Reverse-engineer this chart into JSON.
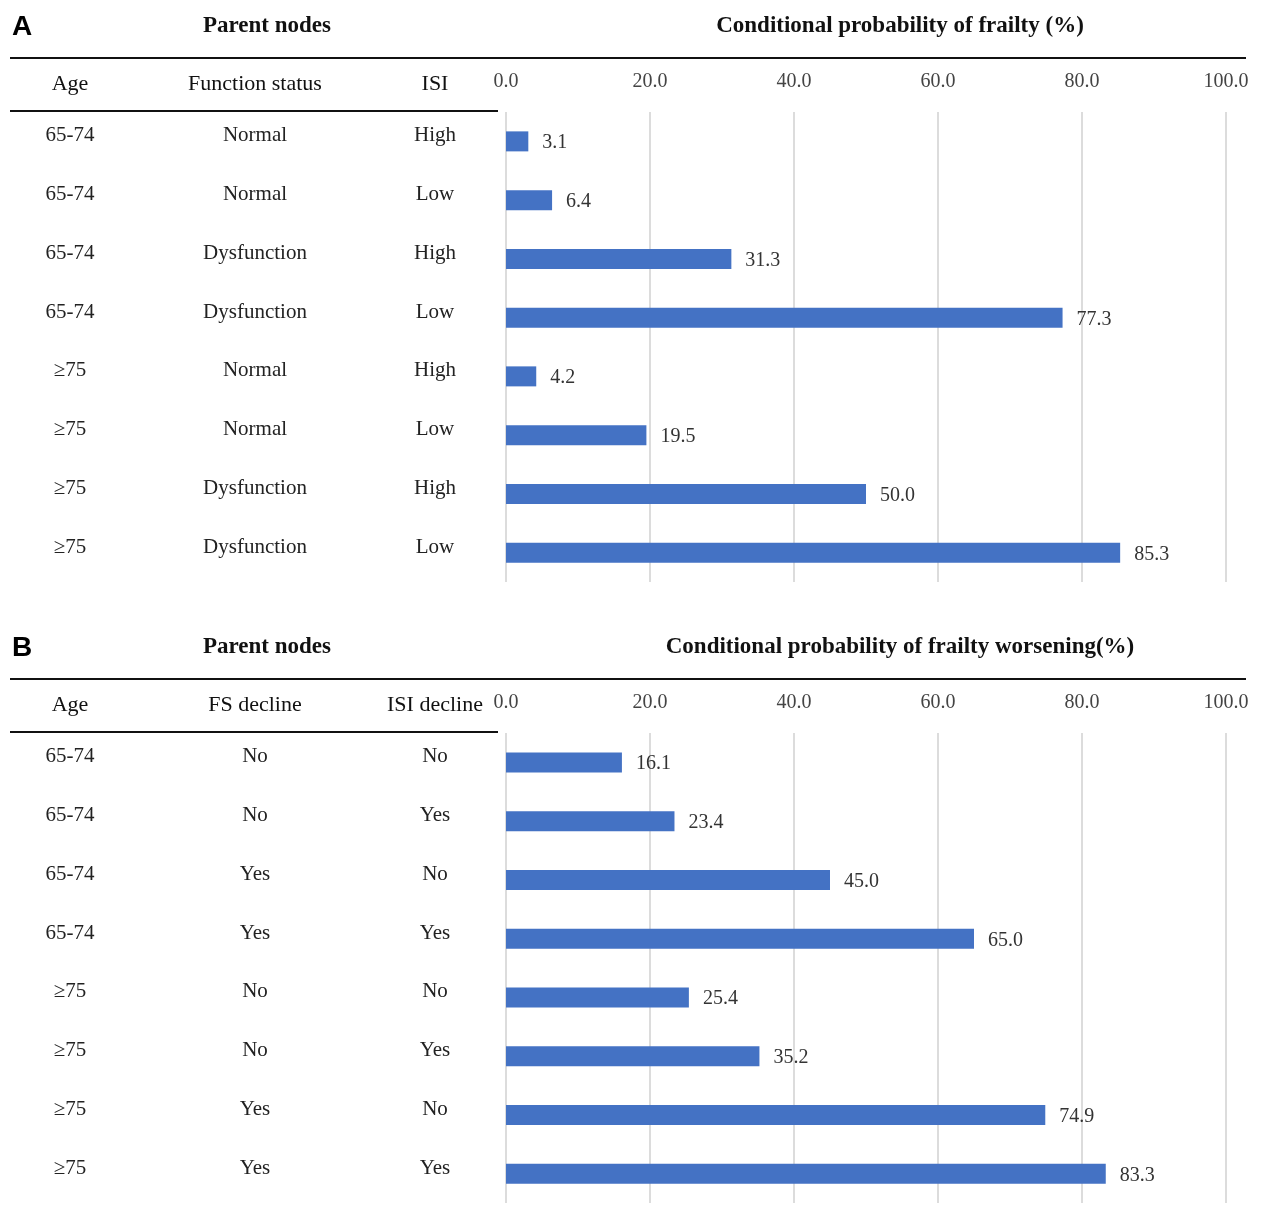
{
  "chart_data": [
    {
      "type": "bar",
      "orientation": "horizontal",
      "title": "Conditional probability of frailty (%)",
      "annotations": [
        "A",
        "Parent nodes",
        "Age",
        "Function status",
        "ISI",
        "65-74",
        "Normal",
        "High",
        "65-74",
        "Normal",
        "Low",
        "65-74",
        "Dysfunction",
        "High",
        "65-74",
        "Dysfunction",
        "Low",
        "≥75",
        "Normal",
        "High",
        "≥75",
        "Normal",
        "Low",
        "≥75",
        "Dysfunction",
        "High",
        "≥75",
        "Dysfunction",
        "Low"
      ],
      "categories": [
        null,
        null,
        null,
        null,
        null,
        null,
        null,
        null
      ],
      "values": [
        3.1,
        6.4,
        31.3,
        77.3,
        4.2,
        19.5,
        50.0,
        85.3
      ],
      "value_labels": [
        "3.1",
        "6.4",
        "31.3",
        "77.3",
        "4.2",
        "19.5",
        "50.0",
        "85.3"
      ],
      "color": "#4472c4",
      "xlim": [
        0,
        100
      ],
      "xticks": [
        {
          "value": 0,
          "label": "0.0"
        },
        {
          "value": 20,
          "label": "20.0"
        },
        {
          "value": 40,
          "label": "40.0"
        },
        {
          "value": 60,
          "label": "60.0"
        },
        {
          "value": 80,
          "label": "80.0"
        },
        {
          "value": 100,
          "label": "100.0"
        }
      ],
      "grid": "x",
      "tick_labels": "x"
    },
    {
      "type": "bar",
      "orientation": "horizontal",
      "title": "Conditional probability of frailty worsening(%)",
      "annotations": [
        "B",
        "Parent nodes",
        "Age",
        "FS decline",
        "ISI decline",
        "65-74",
        "No",
        "No",
        "65-74",
        "No",
        "Yes",
        "65-74",
        "Yes",
        "No",
        "65-74",
        "Yes",
        "Yes",
        "≥75",
        "No",
        "No",
        "≥75",
        "No",
        "Yes",
        "≥75",
        "Yes",
        "No",
        "≥75",
        "Yes",
        "Yes"
      ],
      "categories": [
        null,
        null,
        null,
        null,
        null,
        null,
        null,
        null
      ],
      "values": [
        16.1,
        23.4,
        45.0,
        65.0,
        25.4,
        35.2,
        74.9,
        83.3
      ],
      "value_labels": [
        "16.1",
        "23.4",
        "45.0",
        "65.0",
        "25.4",
        "35.2",
        "74.9",
        "83.3"
      ],
      "color": "#4472c4",
      "xlim": [
        0,
        100
      ],
      "xticks": [
        {
          "value": 0,
          "label": "0.0"
        },
        {
          "value": 20,
          "label": "20.0"
        },
        {
          "value": 40,
          "label": "40.0"
        },
        {
          "value": 60,
          "label": "60.0"
        },
        {
          "value": 80,
          "label": "80.0"
        },
        {
          "value": 100,
          "label": "100.0"
        }
      ],
      "grid": "x",
      "tick_labels": "x"
    }
  ]
}
